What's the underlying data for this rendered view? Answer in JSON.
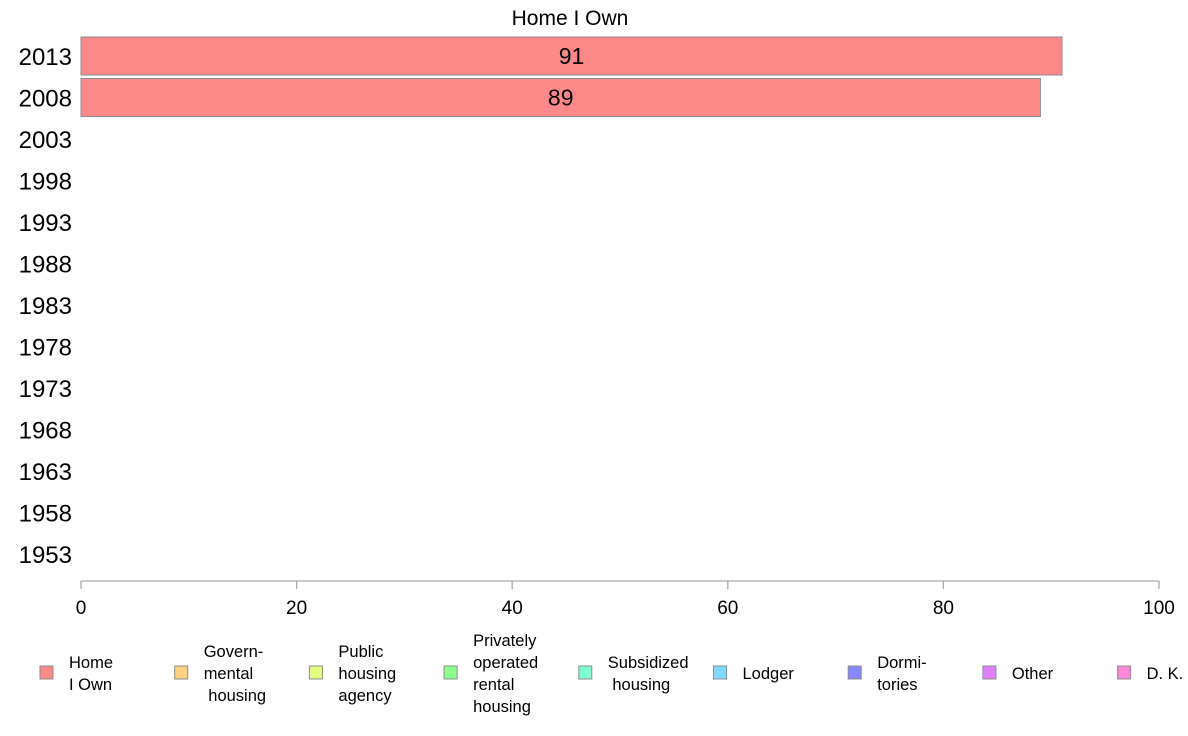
{
  "chart_data": {
    "type": "bar",
    "orientation": "horizontal",
    "title": "Home I Own",
    "categories": [
      "2013",
      "2008",
      "2003",
      "1998",
      "1993",
      "1988",
      "1983",
      "1978",
      "1973",
      "1968",
      "1963",
      "1958",
      "1953"
    ],
    "values": [
      91,
      89,
      null,
      null,
      null,
      null,
      null,
      null,
      null,
      null,
      null,
      null,
      null
    ],
    "data_labels": [
      "91",
      "89",
      "",
      "",
      "",
      "",
      "",
      "",
      "",
      "",
      "",
      "",
      ""
    ],
    "bar_color": "#ff8888",
    "xlim": [
      0,
      100
    ],
    "xticks": [
      "0",
      "20",
      "40",
      "60",
      "80",
      "100"
    ],
    "grid": false,
    "legend_position": "bottom",
    "legend": [
      {
        "lines": [
          "Home",
          "I Own"
        ],
        "color": "#ff8888"
      },
      {
        "lines": [
          "Govern-",
          "mental",
          " housing"
        ],
        "color": "#ffd280"
      },
      {
        "lines": [
          "Public",
          "housing",
          "agency"
        ],
        "color": "#e2ff80"
      },
      {
        "lines": [
          "Privately",
          "operated",
          "rental",
          "housing"
        ],
        "color": "#8cff8c"
      },
      {
        "lines": [
          "Subsidized",
          " housing"
        ],
        "color": "#80ffd4"
      },
      {
        "lines": [
          "Lodger"
        ],
        "color": "#80d8ff"
      },
      {
        "lines": [
          "Dormi-",
          "tories"
        ],
        "color": "#8888ff"
      },
      {
        "lines": [
          "Other"
        ],
        "color": "#e080ff"
      },
      {
        "lines": [
          "D. K."
        ],
        "color": "#ff88d8"
      }
    ]
  }
}
